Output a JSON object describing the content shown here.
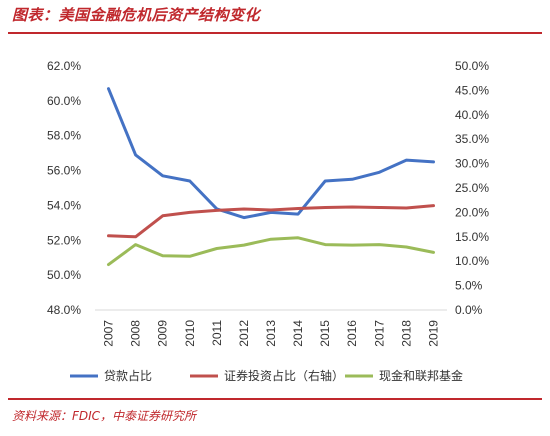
{
  "header": {
    "title": "图表：美国金融危机后资产结构变化"
  },
  "footer": {
    "source": "资料来源：FDIC，中泰证券研究所"
  },
  "chart_data": {
    "type": "line",
    "title": "图表：美国金融危机后资产结构变化",
    "x": [
      "2007",
      "2008",
      "2009",
      "2010",
      "2011",
      "2012",
      "2013",
      "2014",
      "2015",
      "2016",
      "2017",
      "2018",
      "2019"
    ],
    "left_axis": {
      "ylim": [
        48.0,
        62.0
      ],
      "ticks": [
        "48.0%",
        "50.0%",
        "52.0%",
        "54.0%",
        "56.0%",
        "58.0%",
        "60.0%",
        "62.0%"
      ]
    },
    "right_axis": {
      "ylim": [
        0.0,
        50.0
      ],
      "ticks": [
        "0.0%",
        "5.0%",
        "10.0%",
        "15.0%",
        "20.0%",
        "25.0%",
        "30.0%",
        "35.0%",
        "40.0%",
        "45.0%",
        "50.0%"
      ]
    },
    "series": [
      {
        "name": "贷款占比",
        "axis": "left",
        "color": "#4472c4",
        "values": [
          60.7,
          56.9,
          55.7,
          55.4,
          53.8,
          53.3,
          53.6,
          53.5,
          55.4,
          55.5,
          55.9,
          56.6,
          56.5
        ]
      },
      {
        "name": "证券投资占比（右轴）",
        "axis": "right",
        "color": "#c0504d",
        "values": [
          15.2,
          15.0,
          19.3,
          20.0,
          20.4,
          20.7,
          20.5,
          20.8,
          21.0,
          21.1,
          21.0,
          20.9,
          21.4
        ]
      },
      {
        "name": "现金和联邦基金",
        "axis": "right",
        "color": "#9bbb59",
        "values": [
          9.3,
          13.4,
          11.1,
          11.0,
          12.6,
          13.3,
          14.5,
          14.8,
          13.4,
          13.3,
          13.4,
          12.9,
          11.8
        ]
      }
    ],
    "grid": false,
    "legend": "bottom"
  }
}
